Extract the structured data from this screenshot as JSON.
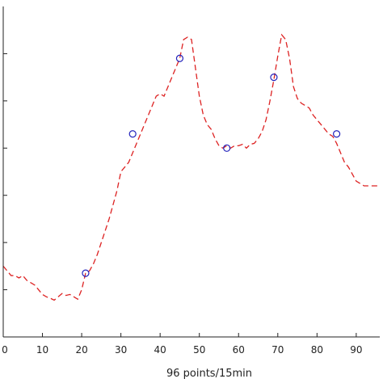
{
  "chart_data": {
    "type": "line",
    "title": "",
    "xlabel": "96 points/15min",
    "ylabel": "",
    "xlim": [
      0,
      96
    ],
    "ylim": [
      0,
      7
    ],
    "x_ticks": [
      0,
      10,
      20,
      30,
      40,
      50,
      60,
      70,
      80,
      90
    ],
    "x_tick_labels": [
      "0",
      "10",
      "20",
      "30",
      "40",
      "50",
      "60",
      "70",
      "80",
      "90"
    ],
    "y_ticks": [
      1,
      2,
      3,
      4,
      5,
      6
    ],
    "grid": false,
    "legend": "none",
    "colors": {
      "line": "#dd2222",
      "marker": "#2222bb",
      "axis": "#222222"
    },
    "series": [
      {
        "style": "dashed",
        "x": [
          0,
          1,
          2,
          3,
          4,
          5,
          6,
          7,
          8,
          9,
          10,
          11,
          12,
          13,
          14,
          15,
          16,
          17,
          18,
          19,
          20,
          21,
          22,
          23,
          24,
          25,
          26,
          27,
          28,
          29,
          30,
          31,
          32,
          33,
          34,
          35,
          36,
          37,
          38,
          39,
          40,
          41,
          42,
          43,
          44,
          45,
          46,
          47,
          48,
          49,
          50,
          51,
          52,
          53,
          54,
          55,
          56,
          57,
          58,
          59,
          60,
          61,
          62,
          63,
          64,
          65,
          66,
          67,
          68,
          69,
          70,
          71,
          72,
          73,
          74,
          75,
          76,
          77,
          78,
          79,
          80,
          81,
          82,
          83,
          84,
          85,
          86,
          87,
          88,
          89,
          90,
          91,
          92,
          93,
          94,
          95,
          96
        ],
        "y": [
          1.5,
          1.4,
          1.3,
          1.3,
          1.25,
          1.3,
          1.2,
          1.15,
          1.1,
          1.0,
          0.9,
          0.85,
          0.82,
          0.78,
          0.85,
          0.92,
          0.88,
          0.9,
          0.85,
          0.8,
          1.0,
          1.35,
          1.4,
          1.55,
          1.75,
          2.0,
          2.25,
          2.5,
          2.8,
          3.1,
          3.5,
          3.6,
          3.7,
          3.9,
          4.1,
          4.3,
          4.5,
          4.7,
          4.9,
          5.1,
          5.15,
          5.1,
          5.3,
          5.5,
          5.7,
          5.9,
          6.3,
          6.35,
          6.3,
          5.7,
          5.1,
          4.7,
          4.5,
          4.4,
          4.2,
          4.05,
          4.0,
          4.05,
          4.0,
          4.05,
          4.05,
          4.08,
          4.0,
          4.08,
          4.1,
          4.2,
          4.35,
          4.6,
          5.0,
          5.45,
          5.95,
          6.4,
          6.3,
          5.9,
          5.3,
          5.05,
          4.95,
          4.9,
          4.85,
          4.7,
          4.6,
          4.5,
          4.4,
          4.3,
          4.25,
          4.1,
          3.9,
          3.7,
          3.6,
          3.45,
          3.3,
          3.25,
          3.2,
          3.2,
          3.2,
          3.2,
          3.2
        ]
      },
      {
        "style": "markers",
        "x": [
          21,
          33,
          45,
          57,
          69,
          85
        ],
        "y": [
          1.35,
          4.3,
          5.9,
          4.0,
          5.5,
          4.3
        ]
      }
    ]
  }
}
